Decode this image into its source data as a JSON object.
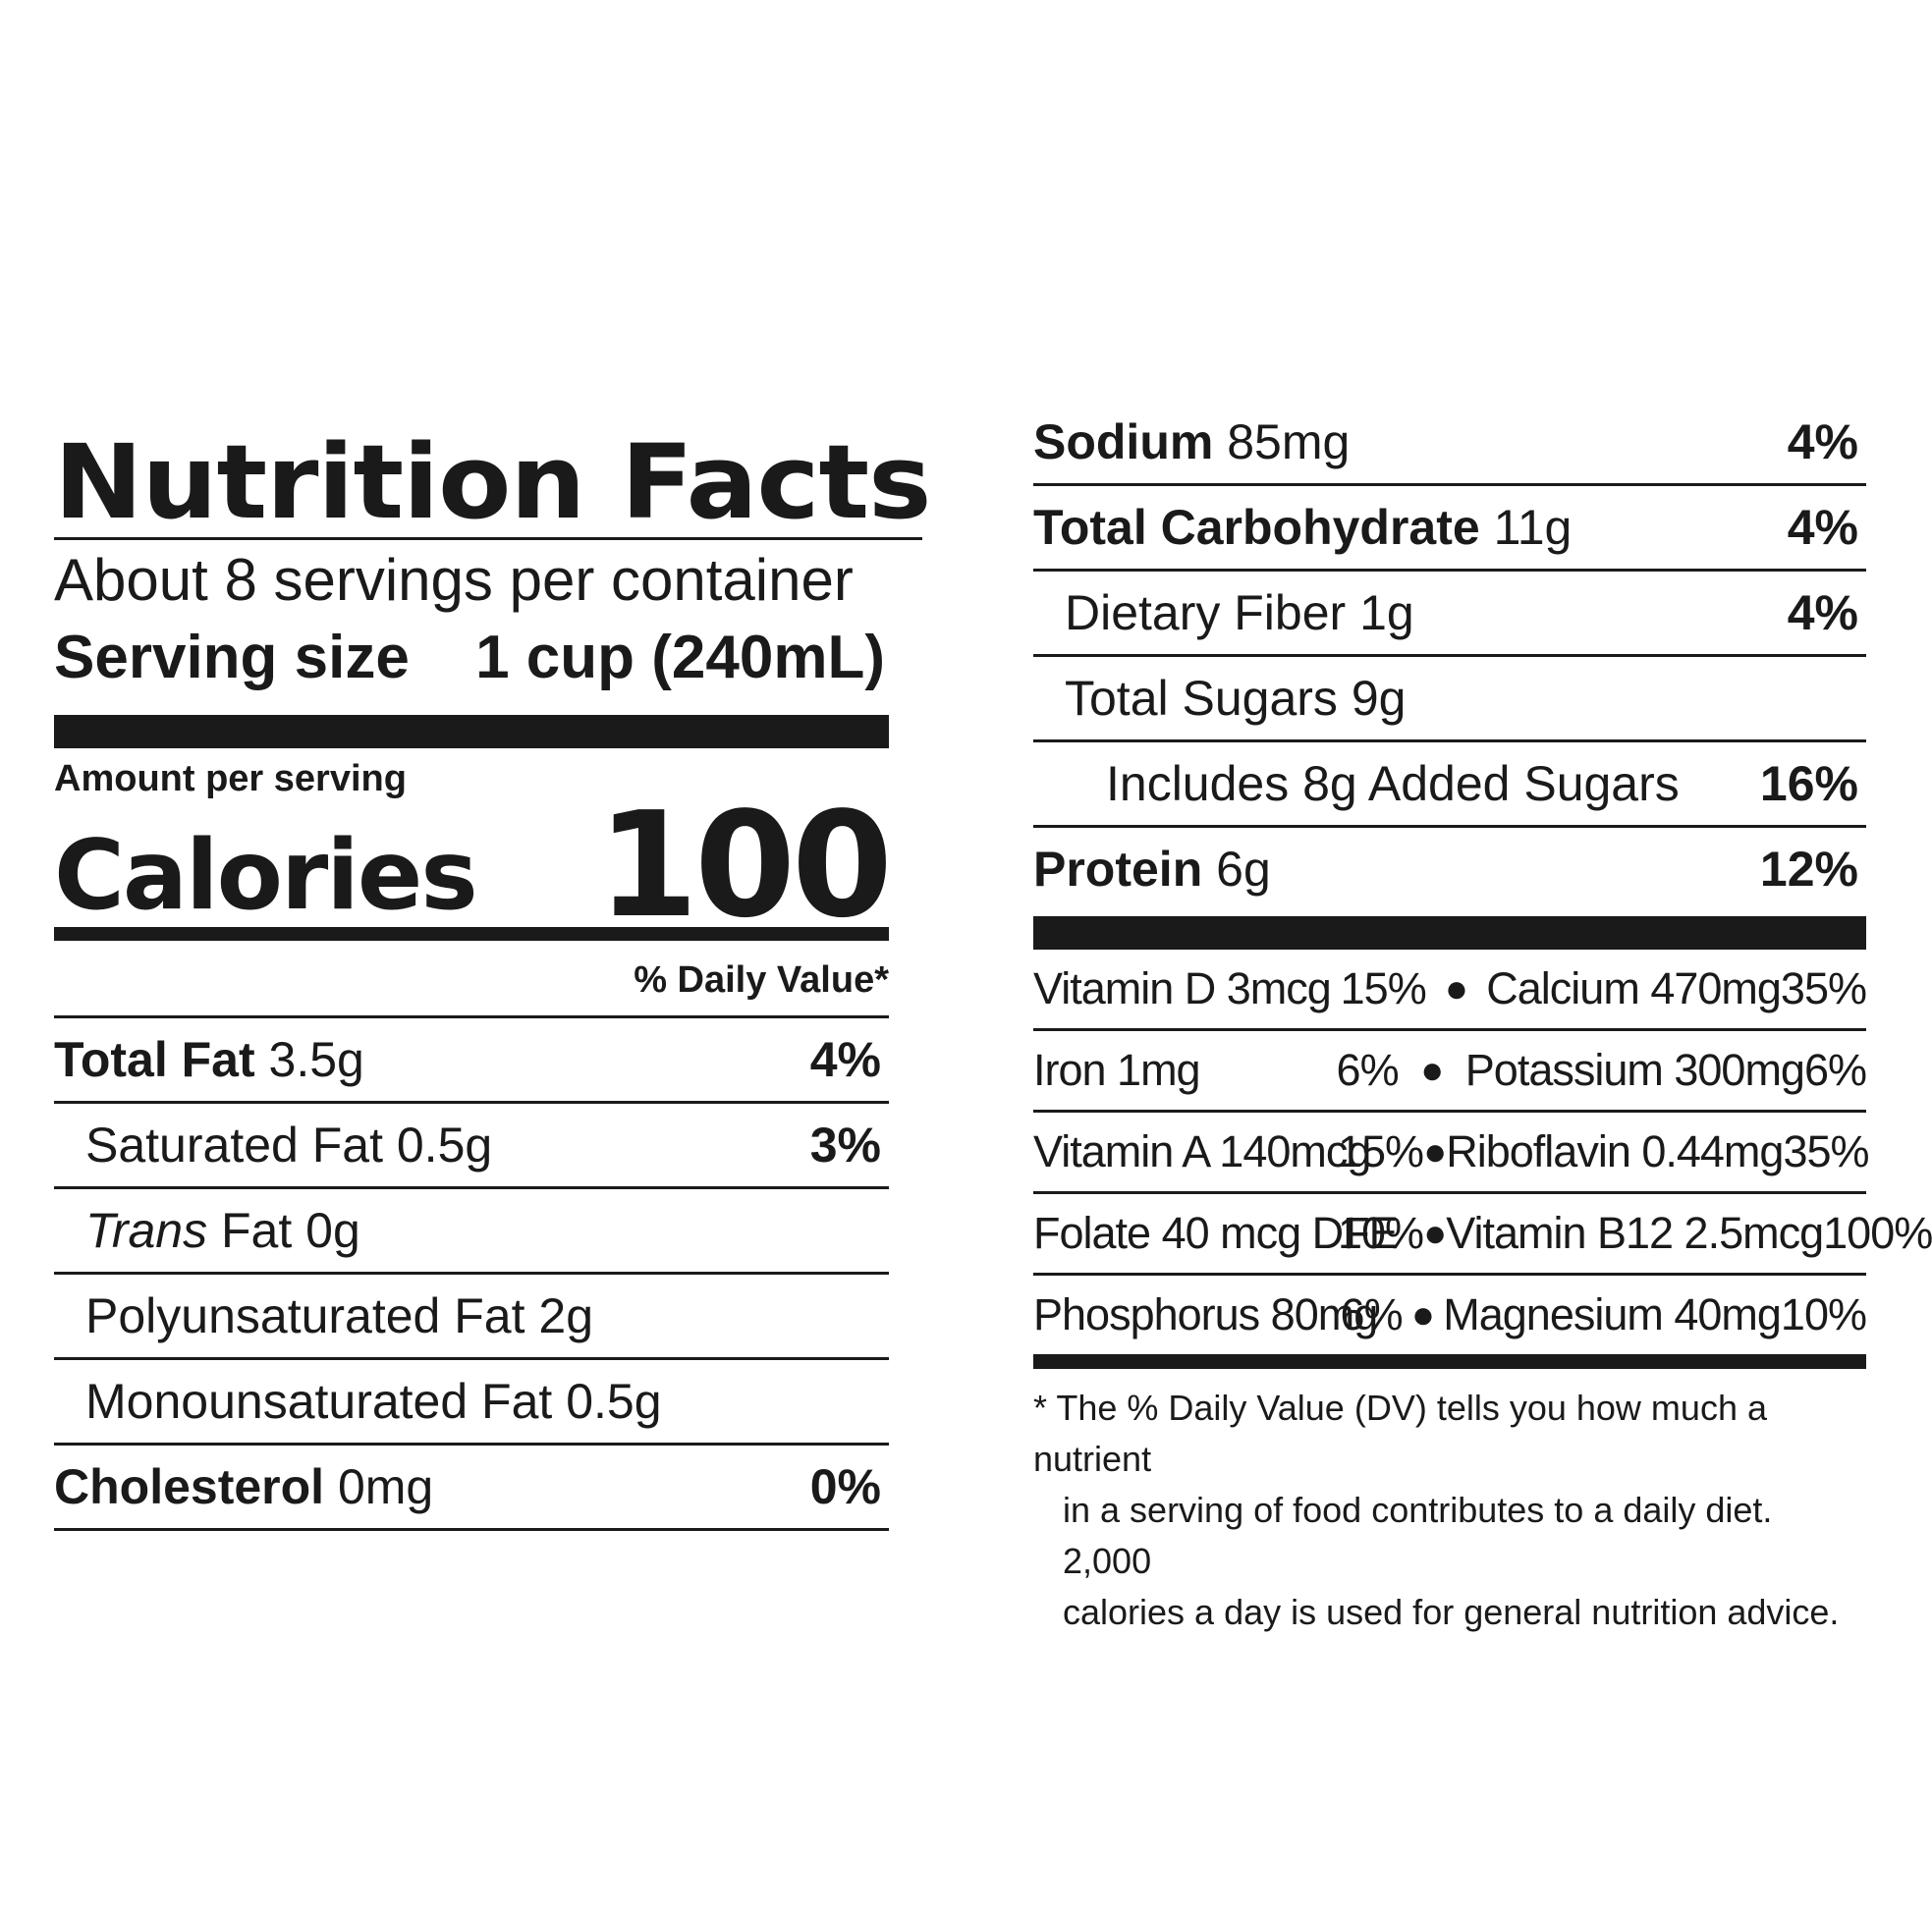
{
  "title": "Nutrition Facts",
  "servings_per_container": "About 8 servings per container",
  "serving_size": {
    "label": "Serving size",
    "value": "1 cup (240mL)"
  },
  "amount_per_serving": "Amount per serving",
  "calories": {
    "label": "Calories",
    "value": "100"
  },
  "daily_value_header": "% Daily Value*",
  "left_nutrients": [
    {
      "name": "Total Fat",
      "amount": "3.5g",
      "dv": "4%"
    },
    {
      "name": "Saturated Fat",
      "amount": "0.5g",
      "dv": "3%"
    },
    {
      "name_italic": "Trans",
      "name": "Fat",
      "amount": "0g",
      "dv": ""
    },
    {
      "name": "Polyunsaturated Fat",
      "amount": "2g",
      "dv": ""
    },
    {
      "name": "Monounsaturated Fat",
      "amount": "0.5g",
      "dv": ""
    },
    {
      "name": "Cholesterol",
      "amount": "0mg",
      "dv": "0%"
    }
  ],
  "right_nutrients": [
    {
      "name": "Sodium",
      "amount": "85mg",
      "dv": "4%"
    },
    {
      "name": "Total Carbohydrate",
      "amount": "11g",
      "dv": "4%"
    },
    {
      "name": "Dietary Fiber",
      "amount": "1g",
      "dv": "4%"
    },
    {
      "name": "Total Sugars",
      "amount": "9g",
      "dv": ""
    },
    {
      "name": "Includes 8g Added Sugars",
      "dv": "16%"
    },
    {
      "name": "Protein",
      "amount": "6g",
      "dv": "12%"
    }
  ],
  "vitamins": [
    {
      "name1": "Vitamin D 3mcg",
      "dv1": "15%",
      "name2": "Calcium 470mg",
      "dv2": "35%"
    },
    {
      "name1": "Iron 1mg",
      "dv1": "6%",
      "name2": "Potassium 300mg",
      "dv2": "6%"
    },
    {
      "name1": "Vitamin A 140mcg",
      "dv1": "15%",
      "name2": "Riboflavin 0.44mg",
      "dv2": "35%"
    },
    {
      "name1": "Folate 40 mcg DFE",
      "dv1": "10%",
      "name2": "Vitamin B12 2.5mcg",
      "dv2": "100%"
    },
    {
      "name1": "Phosphorus 80mg",
      "dv1": "6%",
      "name2": "Magnesium 40mg",
      "dv2": "10%"
    }
  ],
  "bullet": "●",
  "footnote": {
    "line1": "* The % Daily Value (DV) tells you how much a nutrient",
    "line2": "in a serving of food contributes to a daily diet. 2,000",
    "line3": "calories a day is used for general nutrition advice."
  }
}
